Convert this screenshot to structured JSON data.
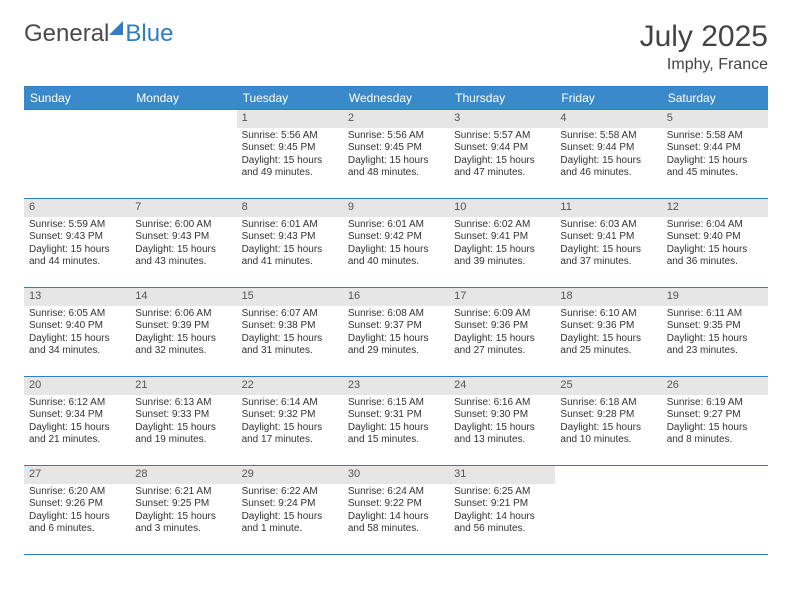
{
  "logo": {
    "part1": "General",
    "part2": "Blue"
  },
  "title": "July 2025",
  "location": "Imphy, France",
  "day_headers": [
    "Sunday",
    "Monday",
    "Tuesday",
    "Wednesday",
    "Thursday",
    "Friday",
    "Saturday"
  ],
  "colors": {
    "header_bg": "#3a8acb",
    "header_text": "#ffffff",
    "border": "#2d7dc8",
    "daynum_bg": "#e6e6e6",
    "text": "#333333",
    "background": "#ffffff"
  },
  "typography": {
    "title_fontsize": 30,
    "location_fontsize": 16,
    "dayhead_fontsize": 12,
    "daynum_fontsize": 11,
    "body_fontsize": 10
  },
  "weeks": [
    [
      null,
      null,
      {
        "n": "1",
        "sr": "Sunrise: 5:56 AM",
        "ss": "Sunset: 9:45 PM",
        "d1": "Daylight: 15 hours",
        "d2": "and 49 minutes."
      },
      {
        "n": "2",
        "sr": "Sunrise: 5:56 AM",
        "ss": "Sunset: 9:45 PM",
        "d1": "Daylight: 15 hours",
        "d2": "and 48 minutes."
      },
      {
        "n": "3",
        "sr": "Sunrise: 5:57 AM",
        "ss": "Sunset: 9:44 PM",
        "d1": "Daylight: 15 hours",
        "d2": "and 47 minutes."
      },
      {
        "n": "4",
        "sr": "Sunrise: 5:58 AM",
        "ss": "Sunset: 9:44 PM",
        "d1": "Daylight: 15 hours",
        "d2": "and 46 minutes."
      },
      {
        "n": "5",
        "sr": "Sunrise: 5:58 AM",
        "ss": "Sunset: 9:44 PM",
        "d1": "Daylight: 15 hours",
        "d2": "and 45 minutes."
      }
    ],
    [
      {
        "n": "6",
        "sr": "Sunrise: 5:59 AM",
        "ss": "Sunset: 9:43 PM",
        "d1": "Daylight: 15 hours",
        "d2": "and 44 minutes."
      },
      {
        "n": "7",
        "sr": "Sunrise: 6:00 AM",
        "ss": "Sunset: 9:43 PM",
        "d1": "Daylight: 15 hours",
        "d2": "and 43 minutes."
      },
      {
        "n": "8",
        "sr": "Sunrise: 6:01 AM",
        "ss": "Sunset: 9:43 PM",
        "d1": "Daylight: 15 hours",
        "d2": "and 41 minutes."
      },
      {
        "n": "9",
        "sr": "Sunrise: 6:01 AM",
        "ss": "Sunset: 9:42 PM",
        "d1": "Daylight: 15 hours",
        "d2": "and 40 minutes."
      },
      {
        "n": "10",
        "sr": "Sunrise: 6:02 AM",
        "ss": "Sunset: 9:41 PM",
        "d1": "Daylight: 15 hours",
        "d2": "and 39 minutes."
      },
      {
        "n": "11",
        "sr": "Sunrise: 6:03 AM",
        "ss": "Sunset: 9:41 PM",
        "d1": "Daylight: 15 hours",
        "d2": "and 37 minutes."
      },
      {
        "n": "12",
        "sr": "Sunrise: 6:04 AM",
        "ss": "Sunset: 9:40 PM",
        "d1": "Daylight: 15 hours",
        "d2": "and 36 minutes."
      }
    ],
    [
      {
        "n": "13",
        "sr": "Sunrise: 6:05 AM",
        "ss": "Sunset: 9:40 PM",
        "d1": "Daylight: 15 hours",
        "d2": "and 34 minutes."
      },
      {
        "n": "14",
        "sr": "Sunrise: 6:06 AM",
        "ss": "Sunset: 9:39 PM",
        "d1": "Daylight: 15 hours",
        "d2": "and 32 minutes."
      },
      {
        "n": "15",
        "sr": "Sunrise: 6:07 AM",
        "ss": "Sunset: 9:38 PM",
        "d1": "Daylight: 15 hours",
        "d2": "and 31 minutes."
      },
      {
        "n": "16",
        "sr": "Sunrise: 6:08 AM",
        "ss": "Sunset: 9:37 PM",
        "d1": "Daylight: 15 hours",
        "d2": "and 29 minutes."
      },
      {
        "n": "17",
        "sr": "Sunrise: 6:09 AM",
        "ss": "Sunset: 9:36 PM",
        "d1": "Daylight: 15 hours",
        "d2": "and 27 minutes."
      },
      {
        "n": "18",
        "sr": "Sunrise: 6:10 AM",
        "ss": "Sunset: 9:36 PM",
        "d1": "Daylight: 15 hours",
        "d2": "and 25 minutes."
      },
      {
        "n": "19",
        "sr": "Sunrise: 6:11 AM",
        "ss": "Sunset: 9:35 PM",
        "d1": "Daylight: 15 hours",
        "d2": "and 23 minutes."
      }
    ],
    [
      {
        "n": "20",
        "sr": "Sunrise: 6:12 AM",
        "ss": "Sunset: 9:34 PM",
        "d1": "Daylight: 15 hours",
        "d2": "and 21 minutes."
      },
      {
        "n": "21",
        "sr": "Sunrise: 6:13 AM",
        "ss": "Sunset: 9:33 PM",
        "d1": "Daylight: 15 hours",
        "d2": "and 19 minutes."
      },
      {
        "n": "22",
        "sr": "Sunrise: 6:14 AM",
        "ss": "Sunset: 9:32 PM",
        "d1": "Daylight: 15 hours",
        "d2": "and 17 minutes."
      },
      {
        "n": "23",
        "sr": "Sunrise: 6:15 AM",
        "ss": "Sunset: 9:31 PM",
        "d1": "Daylight: 15 hours",
        "d2": "and 15 minutes."
      },
      {
        "n": "24",
        "sr": "Sunrise: 6:16 AM",
        "ss": "Sunset: 9:30 PM",
        "d1": "Daylight: 15 hours",
        "d2": "and 13 minutes."
      },
      {
        "n": "25",
        "sr": "Sunrise: 6:18 AM",
        "ss": "Sunset: 9:28 PM",
        "d1": "Daylight: 15 hours",
        "d2": "and 10 minutes."
      },
      {
        "n": "26",
        "sr": "Sunrise: 6:19 AM",
        "ss": "Sunset: 9:27 PM",
        "d1": "Daylight: 15 hours",
        "d2": "and 8 minutes."
      }
    ],
    [
      {
        "n": "27",
        "sr": "Sunrise: 6:20 AM",
        "ss": "Sunset: 9:26 PM",
        "d1": "Daylight: 15 hours",
        "d2": "and 6 minutes."
      },
      {
        "n": "28",
        "sr": "Sunrise: 6:21 AM",
        "ss": "Sunset: 9:25 PM",
        "d1": "Daylight: 15 hours",
        "d2": "and 3 minutes."
      },
      {
        "n": "29",
        "sr": "Sunrise: 6:22 AM",
        "ss": "Sunset: 9:24 PM",
        "d1": "Daylight: 15 hours",
        "d2": "and 1 minute."
      },
      {
        "n": "30",
        "sr": "Sunrise: 6:24 AM",
        "ss": "Sunset: 9:22 PM",
        "d1": "Daylight: 14 hours",
        "d2": "and 58 minutes."
      },
      {
        "n": "31",
        "sr": "Sunrise: 6:25 AM",
        "ss": "Sunset: 9:21 PM",
        "d1": "Daylight: 14 hours",
        "d2": "and 56 minutes."
      },
      null,
      null
    ]
  ]
}
